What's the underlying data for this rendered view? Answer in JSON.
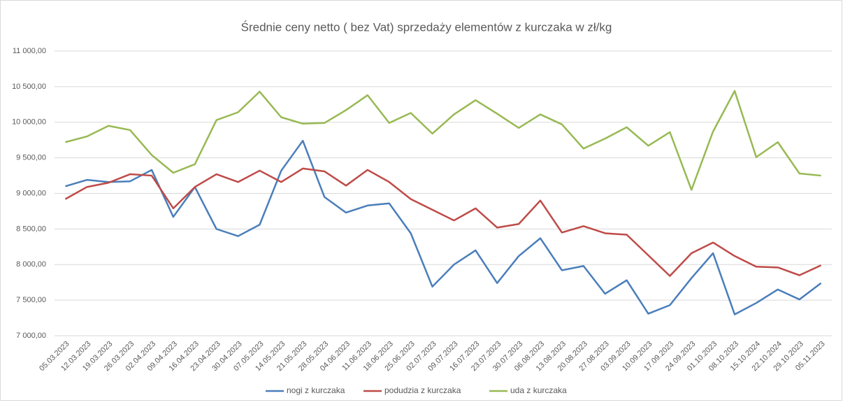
{
  "chart_data": {
    "type": "line",
    "title": "Średnie ceny netto ( bez Vat) sprzedaży elementów z kurczaka w zł/kg",
    "categories": [
      "05.03.2023",
      "12.03.2023",
      "19.03.2023",
      "26.03.2023",
      "02.04.2023",
      "09.04.2023",
      "16.04.2023",
      "23.04.2023",
      "30.04.2023",
      "07.05.2023",
      "14.05.2023",
      "21.05.2023",
      "28.05.2023",
      "04.06.2023",
      "11.06.2023",
      "18.06.2023",
      "25.06.2023",
      "02.07.2023",
      "09.07.2023",
      "16.07.2023",
      "23.07.2023",
      "30.07.2023",
      "06.08.2023",
      "13.08.2023",
      "20.08.2023",
      "27.08.2023",
      "03.09.2023",
      "10.09.2023",
      "17.09.2023",
      "24.09.2023",
      "01.10.2023",
      "08.10.2023",
      "15.10.2024",
      "22.10.2024",
      "29.10.2023",
      "05.11.2023"
    ],
    "series": [
      {
        "name": "nogi z kurczaka",
        "color": "#4a7ebb",
        "values": [
          9100,
          9190,
          9160,
          9170,
          9330,
          8670,
          9090,
          8500,
          8400,
          8560,
          9320,
          9740,
          8950,
          8730,
          8830,
          8860,
          8440,
          7690,
          8000,
          8200,
          7740,
          8120,
          8370,
          7920,
          7980,
          7590,
          7780,
          7310,
          7430,
          7810,
          8160,
          7300,
          7460,
          7650,
          7510,
          7740
        ]
      },
      {
        "name": "podudzia z kurczaka",
        "color": "#be4b48",
        "values": [
          8920,
          9090,
          9150,
          9270,
          9250,
          8790,
          9090,
          9270,
          9160,
          9320,
          9160,
          9350,
          9310,
          9110,
          9330,
          9160,
          8920,
          8770,
          8620,
          8790,
          8520,
          8570,
          8900,
          8450,
          8540,
          8440,
          8420,
          8130,
          7840,
          8160,
          8310,
          8120,
          7970,
          7960,
          7850,
          7990
        ]
      },
      {
        "name": "uda z kurczaka",
        "color": "#98b954",
        "values": [
          9720,
          9800,
          9950,
          9890,
          9540,
          9290,
          9410,
          10030,
          10140,
          10430,
          10070,
          9980,
          9990,
          10170,
          10380,
          9990,
          10130,
          9840,
          10110,
          10310,
          10120,
          9920,
          10110,
          9970,
          9630,
          9770,
          9930,
          9670,
          9860,
          9050,
          9870,
          10440,
          9510,
          9720,
          9280,
          9250
        ]
      }
    ],
    "ylim": [
      7000,
      11000
    ],
    "yticks": [
      {
        "value": 7000,
        "label": "7 000,00"
      },
      {
        "value": 7500,
        "label": "7 500,00"
      },
      {
        "value": 8000,
        "label": "8 000,00"
      },
      {
        "value": 8500,
        "label": "8 500,00"
      },
      {
        "value": 9000,
        "label": "9 000,00"
      },
      {
        "value": 9500,
        "label": "9 500,00"
      },
      {
        "value": 10000,
        "label": "10 000,00"
      },
      {
        "value": 10500,
        "label": "10 500,00"
      },
      {
        "value": 11000,
        "label": "11 000,00"
      }
    ],
    "grid": true,
    "legend": "bottom"
  }
}
